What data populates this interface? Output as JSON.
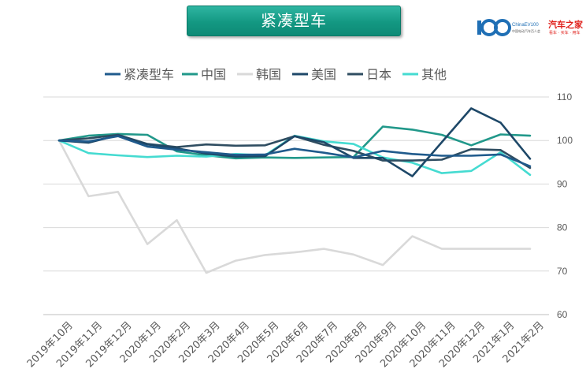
{
  "header": {
    "title": "紧凑型车",
    "logo_text_1": "ChinaEV100",
    "logo_text_2": "中国电动汽车百人会",
    "logo_brand": "汽车之家",
    "logo_brand_sub": "看车 · 买车 · 用车"
  },
  "colors": {
    "accent": "#139882",
    "brand_red": "#e0201b"
  },
  "chart_data": {
    "type": "line",
    "title": "",
    "xlabel": "",
    "ylabel": "",
    "ylim": [
      60,
      110
    ],
    "yticks": [
      60,
      70,
      80,
      90,
      100,
      110
    ],
    "y_axis_side": "right",
    "grid": true,
    "legend_position": "top",
    "categories": [
      "2019年10月",
      "2019年11月",
      "2019年12月",
      "2020年1月",
      "2020年2月",
      "2020年3月",
      "2020年4月",
      "2020年5月",
      "2020年6月",
      "2020年7月",
      "2020年8月",
      "2020年9月",
      "2020年10月",
      "2020年11月",
      "2020年12月",
      "2021年1月",
      "2021年2月"
    ],
    "series": [
      {
        "name": "紧凑型车",
        "color": "#1f5a8c",
        "values": [
          100,
          99.8,
          101,
          98.6,
          97.9,
          97.3,
          96.7,
          96.8,
          98.1,
          97.2,
          96.1,
          97.6,
          96.9,
          96.5,
          96.5,
          96.8,
          94.1
        ]
      },
      {
        "name": "中国",
        "color": "#21988a",
        "values": [
          100,
          101.1,
          101.5,
          101.3,
          97.5,
          96.6,
          95.9,
          96.1,
          96.0,
          96.1,
          96.2,
          103.2,
          102.5,
          101.3,
          98.9,
          101.4,
          101.1
        ]
      },
      {
        "name": "韩国",
        "color": "#d9d9d9",
        "values": [
          100,
          87.2,
          88.2,
          76.2,
          81.7,
          69.6,
          72.4,
          73.7,
          74.3,
          75.1,
          73.8,
          71.4,
          78.0,
          75.1,
          75.1,
          75.1,
          75.1
        ]
      },
      {
        "name": "美国",
        "color": "#1e4868",
        "values": [
          100,
          99.5,
          101.2,
          99.1,
          98.2,
          97.0,
          96.3,
          96.4,
          101.0,
          99.6,
          96.0,
          96.0,
          91.8,
          99.6,
          107.4,
          104.1,
          95.8
        ]
      },
      {
        "name": "日本",
        "color": "#2f4d61",
        "values": [
          100,
          100.5,
          101.3,
          99.2,
          98.5,
          99.1,
          98.8,
          98.9,
          101.0,
          99.0,
          97.6,
          95.4,
          95.4,
          95.6,
          98.0,
          97.8,
          93.7
        ]
      },
      {
        "name": "其他",
        "color": "#45dbd1",
        "values": [
          100,
          97.1,
          96.6,
          96.2,
          96.5,
          96.3,
          96.9,
          96.6,
          101.1,
          99.8,
          99.2,
          96.1,
          94.9,
          92.5,
          93.0,
          97.3,
          92.1
        ]
      }
    ]
  }
}
